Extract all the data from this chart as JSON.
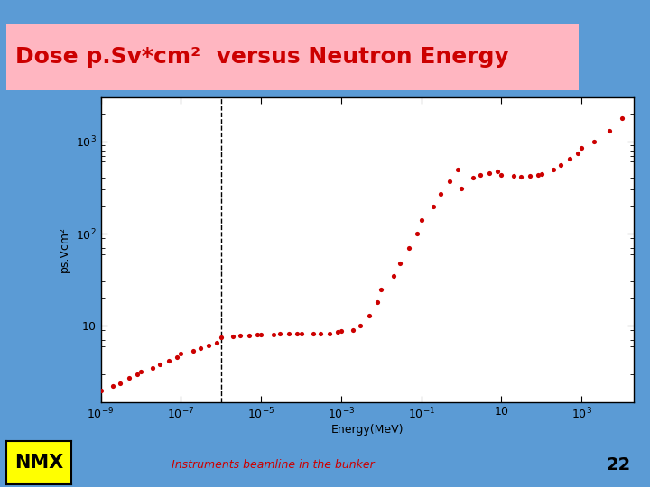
{
  "title": "Dose p.Sv*cm²  versus Neutron Energy",
  "xlabel": "Energy(MeV)",
  "ylabel": "ps.Vcm²",
  "background_color": "#5b9bd5",
  "title_bg_color": "#ffb6c1",
  "title_color": "#cc0000",
  "dot_color": "#cc0000",
  "footer_text": "Instruments beamline in the bunker",
  "footer_color": "#cc0000",
  "slide_number": "22",
  "nmx_bg": "#ffff00",
  "nmx_text_color": "#000000",
  "dashed_line_x": 1e-06,
  "data_x": [
    1e-09,
    2e-09,
    3e-09,
    5e-09,
    8e-09,
    1e-08,
    2e-08,
    3e-08,
    5e-08,
    8e-08,
    1e-07,
    2e-07,
    3e-07,
    5e-07,
    8e-07,
    1e-06,
    2e-06,
    3e-06,
    5e-06,
    8e-06,
    1e-05,
    2e-05,
    3e-05,
    5e-05,
    8e-05,
    0.0001,
    0.0002,
    0.0003,
    0.0005,
    0.0008,
    0.001,
    0.002,
    0.003,
    0.005,
    0.008,
    0.01,
    0.02,
    0.03,
    0.05,
    0.08,
    0.1,
    0.2,
    0.3,
    0.5,
    0.8,
    1,
    2,
    3,
    5,
    8,
    10,
    20,
    30,
    50,
    80,
    100,
    200,
    300,
    500,
    800,
    1000,
    2000,
    5000,
    10000
  ],
  "data_y": [
    2.0,
    2.2,
    2.4,
    2.7,
    3.0,
    3.2,
    3.5,
    3.8,
    4.2,
    4.6,
    5.0,
    5.3,
    5.7,
    6.1,
    6.6,
    7.5,
    7.7,
    7.9,
    7.9,
    8.1,
    8.1,
    8.1,
    8.2,
    8.2,
    8.3,
    8.3,
    8.3,
    8.3,
    8.3,
    8.5,
    8.7,
    9.0,
    10.0,
    13.0,
    18.0,
    25.0,
    35.0,
    48.0,
    70.0,
    100.0,
    140.0,
    195.0,
    270.0,
    370.0,
    500.0,
    310.0,
    400.0,
    430.0,
    450.0,
    470.0,
    430.0,
    420.0,
    410.0,
    420.0,
    430.0,
    440.0,
    500.0,
    560.0,
    650.0,
    750.0,
    850.0,
    1000.0,
    1300.0,
    1800.0
  ],
  "xlim_min": 1e-09,
  "xlim_max": 20000.0,
  "ylim_min": 1.5,
  "ylim_max": 3000
}
